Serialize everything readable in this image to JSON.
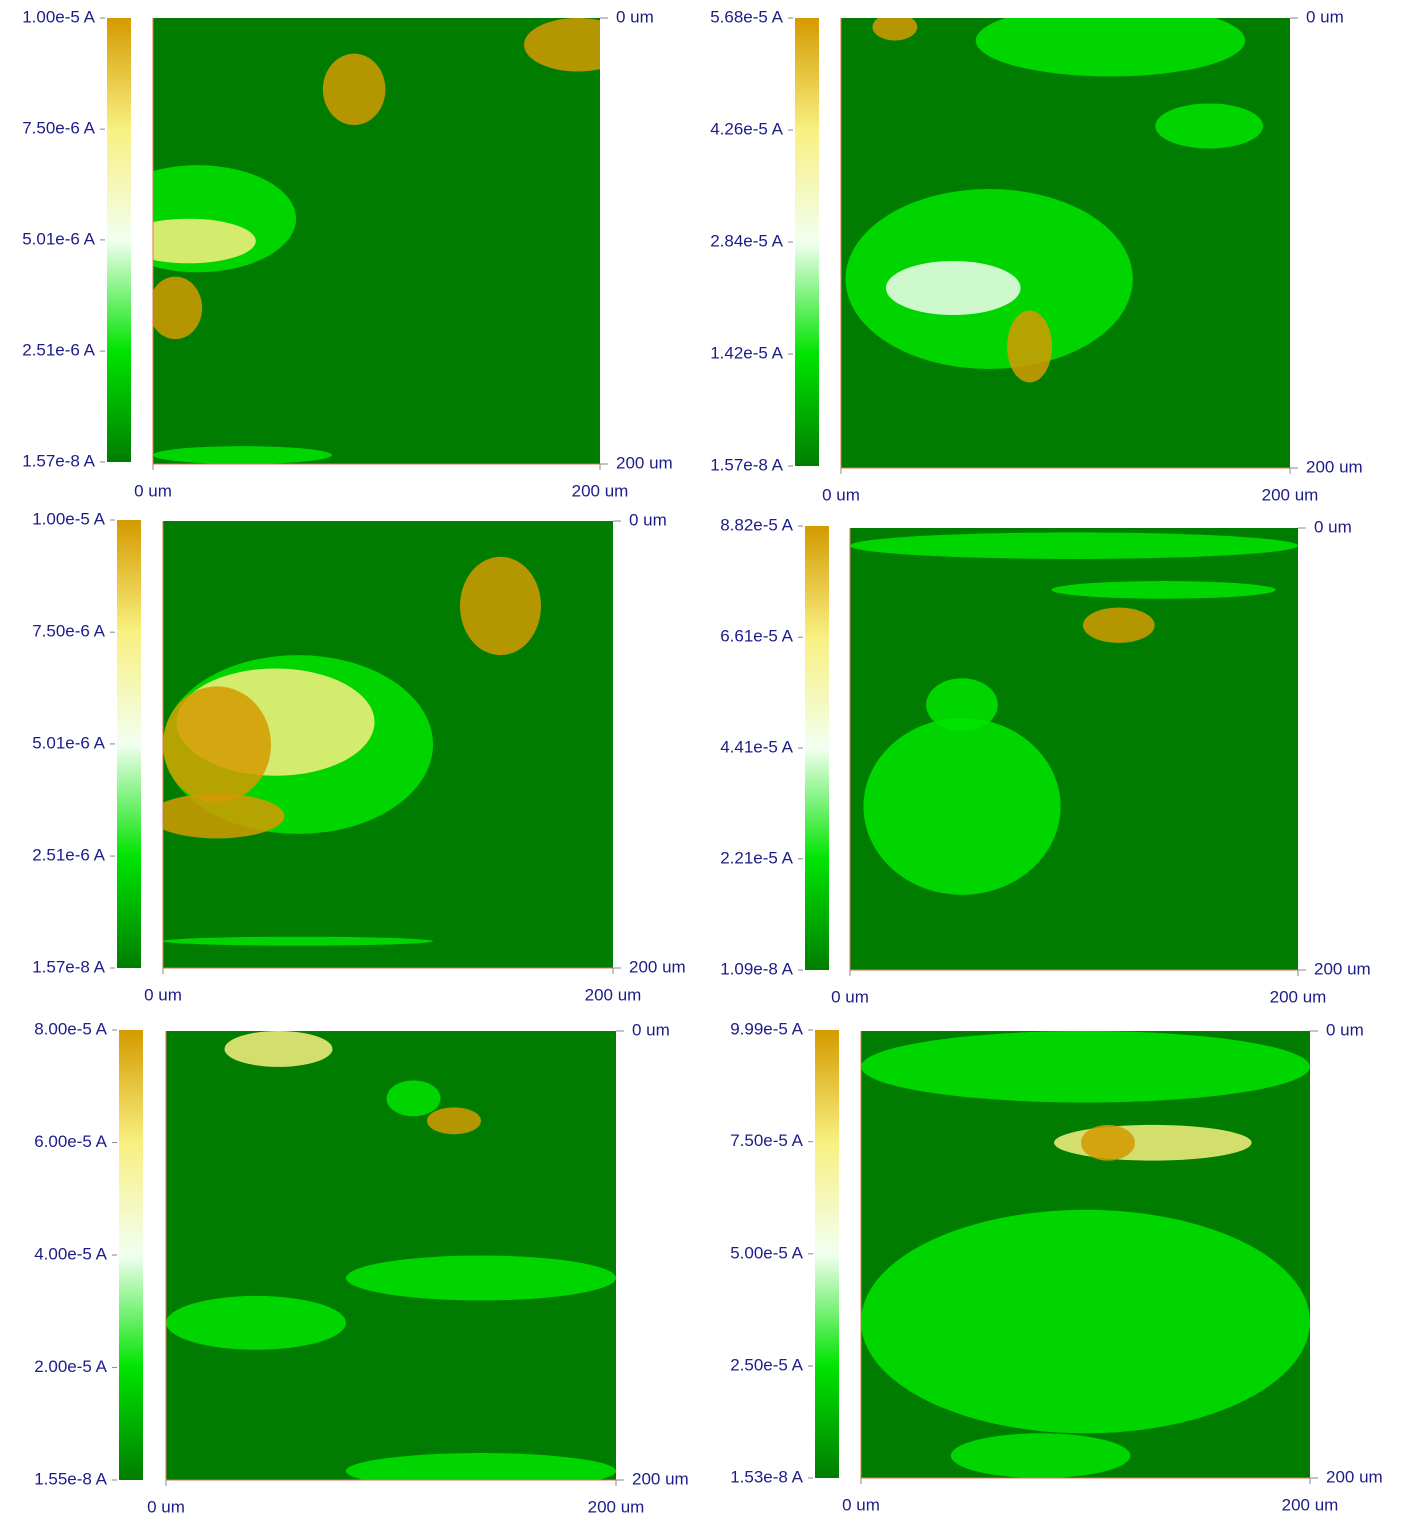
{
  "chart_data": [
    {
      "type": "heatmap",
      "colormap": [
        "#007d00",
        "#00e400",
        "#f2fff0",
        "#f8f080",
        "#d49a00"
      ],
      "clim": [
        1.57e-08,
        1e-05
      ],
      "cticks": [
        {
          "value": 1.57e-08,
          "label": "1.57e-8 A"
        },
        {
          "value": 2.51e-06,
          "label": "2.51e-6 A"
        },
        {
          "value": 5.01e-06,
          "label": "5.01e-6 A"
        },
        {
          "value": 7.5e-06,
          "label": "7.50e-6 A"
        },
        {
          "value": 1e-05,
          "label": "1.00e-5 A"
        }
      ],
      "xlim": [
        0,
        200
      ],
      "xticks": [
        {
          "value": 0,
          "label": "0 um"
        },
        {
          "value": 200,
          "label": "200 um"
        }
      ],
      "ylim": [
        0,
        200
      ],
      "yticks": [
        {
          "value": 0,
          "label": "0 um"
        },
        {
          "value": 200,
          "label": "200 um"
        }
      ]
    },
    {
      "type": "heatmap",
      "colormap": [
        "#007d00",
        "#00e400",
        "#f2fff0",
        "#f8f080",
        "#d49a00"
      ],
      "clim": [
        1.57e-08,
        5.68e-05
      ],
      "cticks": [
        {
          "value": 1.57e-08,
          "label": "1.57e-8 A"
        },
        {
          "value": 1.42e-05,
          "label": "1.42e-5 A"
        },
        {
          "value": 2.84e-05,
          "label": "2.84e-5 A"
        },
        {
          "value": 4.26e-05,
          "label": "4.26e-5 A"
        },
        {
          "value": 5.68e-05,
          "label": "5.68e-5 A"
        }
      ],
      "xlim": [
        0,
        200
      ],
      "xticks": [
        {
          "value": 0,
          "label": "0 um"
        },
        {
          "value": 200,
          "label": "200 um"
        }
      ],
      "ylim": [
        0,
        200
      ],
      "yticks": [
        {
          "value": 0,
          "label": "0 um"
        },
        {
          "value": 200,
          "label": "200 um"
        }
      ]
    },
    {
      "type": "heatmap",
      "colormap": [
        "#007d00",
        "#00e400",
        "#f2fff0",
        "#f8f080",
        "#d49a00"
      ],
      "clim": [
        1.57e-08,
        1e-05
      ],
      "cticks": [
        {
          "value": 1.57e-08,
          "label": "1.57e-8 A"
        },
        {
          "value": 2.51e-06,
          "label": "2.51e-6 A"
        },
        {
          "value": 5.01e-06,
          "label": "5.01e-6 A"
        },
        {
          "value": 7.5e-06,
          "label": "7.50e-6 A"
        },
        {
          "value": 1e-05,
          "label": "1.00e-5 A"
        }
      ],
      "xlim": [
        0,
        200
      ],
      "xticks": [
        {
          "value": 0,
          "label": "0 um"
        },
        {
          "value": 200,
          "label": "200 um"
        }
      ],
      "ylim": [
        0,
        200
      ],
      "yticks": [
        {
          "value": 0,
          "label": "0 um"
        },
        {
          "value": 200,
          "label": "200 um"
        }
      ]
    },
    {
      "type": "heatmap",
      "colormap": [
        "#007d00",
        "#00e400",
        "#f2fff0",
        "#f8f080",
        "#d49a00"
      ],
      "clim": [
        1.09e-08,
        8.82e-05
      ],
      "cticks": [
        {
          "value": 1.09e-08,
          "label": "1.09e-8 A"
        },
        {
          "value": 2.21e-05,
          "label": "2.21e-5 A"
        },
        {
          "value": 4.41e-05,
          "label": "4.41e-5 A"
        },
        {
          "value": 6.61e-05,
          "label": "6.61e-5 A"
        },
        {
          "value": 8.82e-05,
          "label": "8.82e-5 A"
        }
      ],
      "xlim": [
        0,
        200
      ],
      "xticks": [
        {
          "value": 0,
          "label": "0 um"
        },
        {
          "value": 200,
          "label": "200 um"
        }
      ],
      "ylim": [
        0,
        200
      ],
      "yticks": [
        {
          "value": 0,
          "label": "0 um"
        },
        {
          "value": 200,
          "label": "200 um"
        }
      ]
    },
    {
      "type": "heatmap",
      "colormap": [
        "#007d00",
        "#00e400",
        "#f2fff0",
        "#f8f080",
        "#d49a00"
      ],
      "clim": [
        1.55e-08,
        8e-05
      ],
      "cticks": [
        {
          "value": 1.55e-08,
          "label": "1.55e-8 A"
        },
        {
          "value": 2e-05,
          "label": "2.00e-5 A"
        },
        {
          "value": 4e-05,
          "label": "4.00e-5 A"
        },
        {
          "value": 6e-05,
          "label": "6.00e-5 A"
        },
        {
          "value": 8e-05,
          "label": "8.00e-5 A"
        }
      ],
      "xlim": [
        0,
        200
      ],
      "xticks": [
        {
          "value": 0,
          "label": "0 um"
        },
        {
          "value": 200,
          "label": "200 um"
        }
      ],
      "ylim": [
        0,
        200
      ],
      "yticks": [
        {
          "value": 0,
          "label": "0 um"
        },
        {
          "value": 200,
          "label": "200 um"
        }
      ]
    },
    {
      "type": "heatmap",
      "colormap": [
        "#007d00",
        "#00e400",
        "#f2fff0",
        "#f8f080",
        "#d49a00"
      ],
      "clim": [
        1.53e-08,
        9.99e-05
      ],
      "cticks": [
        {
          "value": 1.53e-08,
          "label": "1.53e-8 A"
        },
        {
          "value": 2.5e-05,
          "label": "2.50e-5 A"
        },
        {
          "value": 5e-05,
          "label": "5.00e-5 A"
        },
        {
          "value": 7.5e-05,
          "label": "7.50e-5 A"
        },
        {
          "value": 9.99e-05,
          "label": "9.99e-5 A"
        }
      ],
      "xlim": [
        0,
        200
      ],
      "xticks": [
        {
          "value": 0,
          "label": "0 um"
        },
        {
          "value": 200,
          "label": "200 um"
        }
      ],
      "ylim": [
        0,
        200
      ],
      "yticks": [
        {
          "value": 0,
          "label": "0 um"
        },
        {
          "value": 200,
          "label": "200 um"
        }
      ]
    }
  ]
}
